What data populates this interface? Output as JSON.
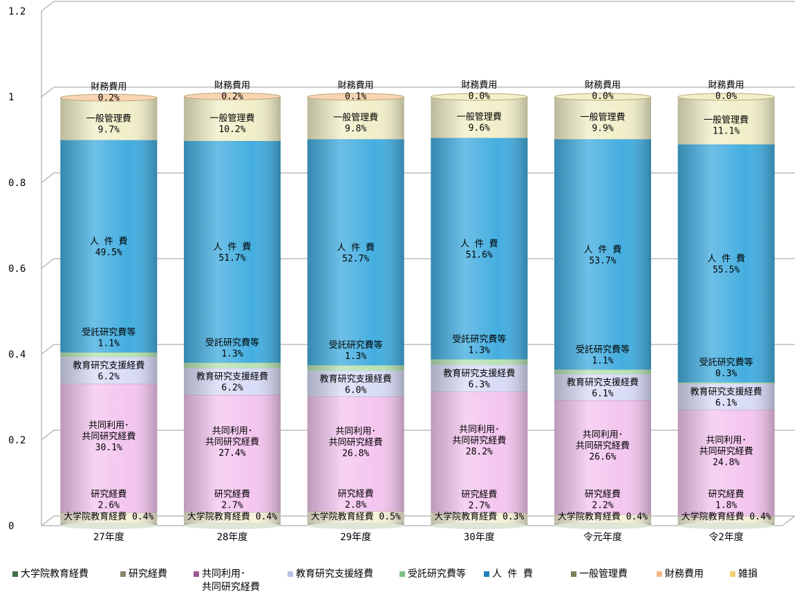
{
  "chart_data": {
    "type": "bar",
    "stacked": true,
    "title": "",
    "xlabel": "",
    "ylabel": "",
    "ylim": [
      0,
      1.2
    ],
    "yticks": [
      "0",
      "0.2",
      "0.4",
      "0.6",
      "0.8",
      "1",
      "1.2"
    ],
    "grid": true,
    "legend_position": "bottom",
    "categories": [
      "27年度",
      "28年度",
      "29年度",
      "30年度",
      "令元年度",
      "令2年度"
    ],
    "series": [
      {
        "name": "大学院教育経費",
        "values": [
          0.004,
          0.004,
          0.005,
          0.003,
          0.004,
          0.004
        ],
        "labels": [
          "大学院教育経費 0.4%",
          "大学院教育経費 0.4%",
          "大学院教育経費 0.5%",
          "大学院教育経費 0.3%",
          "大学院教育経費 0.4%",
          "大学院教育経費 0.4%"
        ],
        "color": "#3f6f48",
        "fill": "#dfe6d6"
      },
      {
        "name": "研究経費",
        "values": [
          0.026,
          0.027,
          0.028,
          0.027,
          0.022,
          0.018
        ],
        "labels": [
          [
            "研究経費",
            "2.6%"
          ],
          [
            "研究経費",
            "2.7%"
          ],
          [
            "研究経費",
            "2.8%"
          ],
          [
            "研究経費",
            "2.7%"
          ],
          [
            "研究経費",
            "2.2%"
          ],
          [
            "研究経費",
            "1.8%"
          ]
        ],
        "color": "#8a866a",
        "fill": "#f6f1d8"
      },
      {
        "name": "共同利用・共同研究経費",
        "legend_lines": [
          "共同利用･",
          "共同研究経費"
        ],
        "values": [
          0.301,
          0.274,
          0.268,
          0.282,
          0.266,
          0.248
        ],
        "labels": [
          [
            "共同利用･",
            "共同研究経費",
            "30.1%"
          ],
          [
            "共同利用･",
            "共同研究経費",
            "27.4%"
          ],
          [
            "共同利用･",
            "共同研究経費",
            "26.8%"
          ],
          [
            "共同利用･",
            "共同研究経費",
            "28.2%"
          ],
          [
            "共同利用･",
            "共同研究経費",
            "26.6%"
          ],
          [
            "共同利用･",
            "共同研究経費",
            "24.8%"
          ]
        ],
        "color": "#9a5a8e",
        "fill": "#f4c6ef"
      },
      {
        "name": "教育研究支援経費",
        "values": [
          0.062,
          0.062,
          0.06,
          0.063,
          0.061,
          0.061
        ],
        "labels": [
          [
            "教育研究支援経費",
            "6.2%"
          ],
          [
            "教育研究支援経費",
            "6.2%"
          ],
          [
            "教育研究支援経費",
            "6.0%"
          ],
          [
            "教育研究支援経費",
            "6.3%"
          ],
          [
            "教育研究支援経費",
            "6.1%"
          ],
          [
            "教育研究支援経費",
            "6.1%"
          ]
        ],
        "color": "#b9bde8",
        "fill": "#d8dcf6"
      },
      {
        "name": "受託研究費等",
        "values": [
          0.011,
          0.013,
          0.013,
          0.013,
          0.011,
          0.003
        ],
        "labels": [
          [
            "受託研究費等",
            "1.1%"
          ],
          [
            "受託研究費等",
            "1.3%"
          ],
          [
            "受託研究費等",
            "1.3%"
          ],
          [
            "受託研究費等",
            "1.3%"
          ],
          [
            "受託研究費等",
            "1.1%"
          ],
          [
            "受託研究費等",
            "0.3%"
          ]
        ],
        "color": "#7fbf84",
        "fill": "#b9e2b5"
      },
      {
        "name": "人 件 費",
        "values": [
          0.495,
          0.517,
          0.527,
          0.516,
          0.537,
          0.555
        ],
        "labels": [
          [
            "人 件 費",
            "49.5%"
          ],
          [
            "人 件 費",
            "51.7%"
          ],
          [
            "人 件 費",
            "52.7%"
          ],
          [
            "人 件 費",
            "51.6%"
          ],
          [
            "人 件 費",
            "53.7%"
          ],
          [
            "人 件 費",
            "55.5%"
          ]
        ],
        "color": "#1f7fb9",
        "fill": "#44aee0"
      },
      {
        "name": "一般管理費",
        "values": [
          0.097,
          0.102,
          0.098,
          0.096,
          0.099,
          0.111
        ],
        "labels": [
          [
            "一般管理費",
            "9.7%"
          ],
          [
            "一般管理費",
            "10.2%"
          ],
          [
            "一般管理費",
            "9.8%"
          ],
          [
            "一般管理費",
            "9.6%"
          ],
          [
            "一般管理費",
            "9.9%"
          ],
          [
            "一般管理費",
            "11.1%"
          ]
        ],
        "color": "#7d7f5a",
        "fill": "#f1efc9"
      },
      {
        "name": "財務費用",
        "values": [
          0.002,
          0.002,
          0.001,
          0.0,
          0.0,
          0.0
        ],
        "labels": [
          [
            "財務費用",
            "0.2%"
          ],
          [
            "財務費用",
            "0.2%"
          ],
          [
            "財務費用",
            "0.1%"
          ],
          [
            "財務費用",
            "0.0%"
          ],
          [
            "財務費用",
            "0.0%"
          ],
          [
            "財務費用",
            "0.0%"
          ]
        ],
        "color": "#f4b886",
        "fill": "#f9d4b3"
      },
      {
        "name": "雑損",
        "values": [
          0,
          0,
          0,
          0,
          0,
          0
        ],
        "color": "#f4cd73",
        "fill": "#f6dc9c"
      }
    ]
  }
}
